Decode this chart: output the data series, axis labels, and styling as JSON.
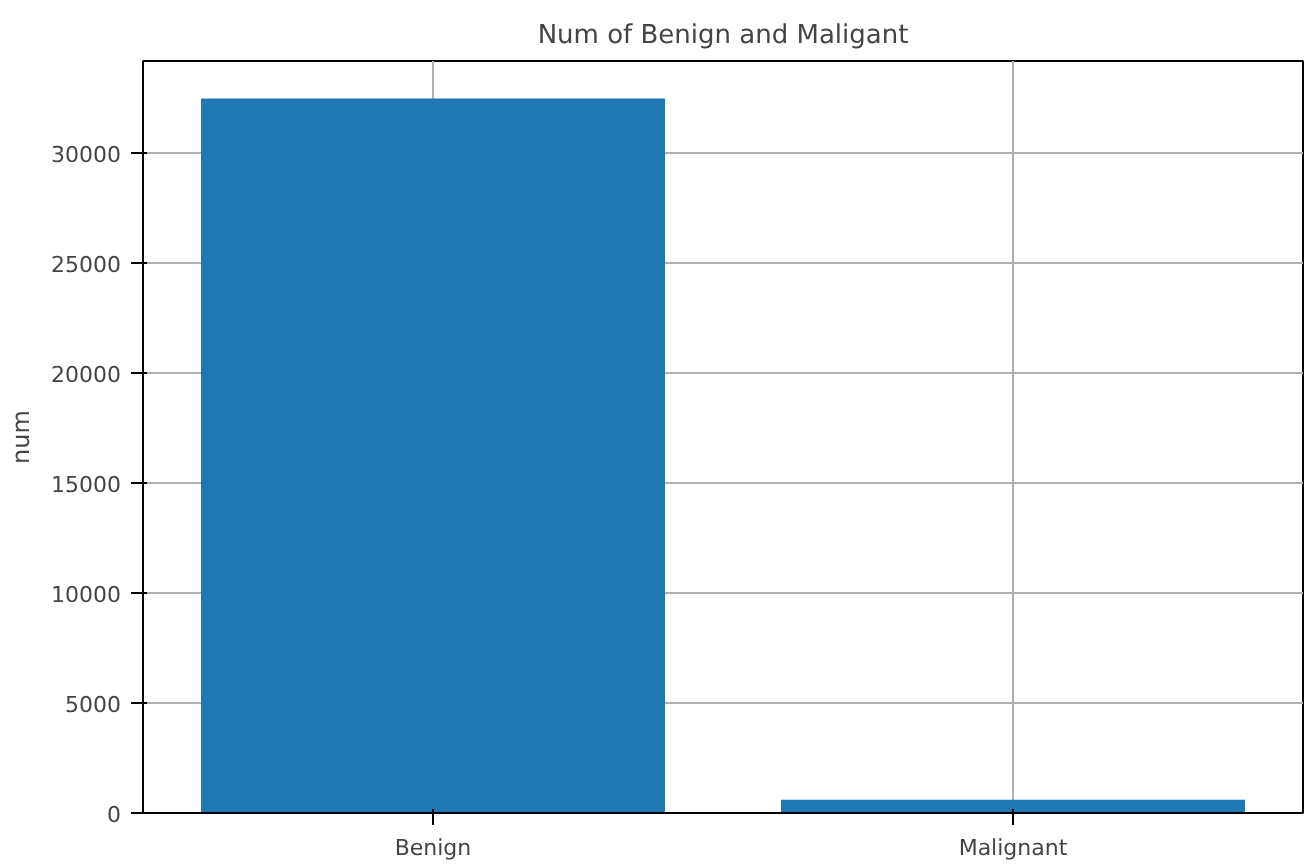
{
  "chart_data": {
    "type": "bar",
    "title": "Num of Benign and Maligant",
    "ylabel": "num",
    "categories": [
      "Benign",
      "Malignant"
    ],
    "values": [
      32500,
      600
    ],
    "color": "#1f77b4",
    "ylim": [
      0,
      34200
    ],
    "yticks": [
      0,
      5000,
      10000,
      15000,
      20000,
      25000,
      30000
    ],
    "grid": true
  }
}
